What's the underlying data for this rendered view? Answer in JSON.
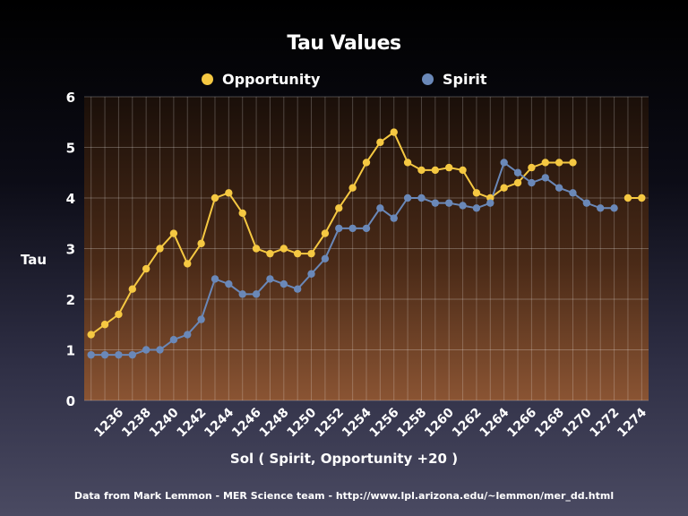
{
  "chart_data": {
    "type": "line",
    "title": "Tau Values",
    "xlabel": "Sol ( Spirit, Opportunity +20 )",
    "ylabel": "Tau",
    "ylim": [
      0,
      6
    ],
    "yticks": [
      "0",
      "1",
      "2",
      "3",
      "4",
      "5",
      "6"
    ],
    "xticks": [
      "1236",
      "1238",
      "1240",
      "1242",
      "1244",
      "1246",
      "1248",
      "1250",
      "1252",
      "1254",
      "1256",
      "1258",
      "1260",
      "1262",
      "1264",
      "1266",
      "1268",
      "1270",
      "1272",
      "1274"
    ],
    "x": [
      1234,
      1235,
      1236,
      1237,
      1238,
      1239,
      1240,
      1241,
      1242,
      1243,
      1244,
      1245,
      1246,
      1247,
      1248,
      1249,
      1250,
      1251,
      1252,
      1253,
      1254,
      1255,
      1256,
      1257,
      1258,
      1259,
      1260,
      1261,
      1262,
      1263,
      1264,
      1265,
      1266,
      1267,
      1268,
      1269,
      1270,
      1271,
      1272,
      1273,
      1274
    ],
    "grid": true,
    "legend_position": "top",
    "series": [
      {
        "name": "Opportunity",
        "color": "#f5c842",
        "values": [
          1.3,
          1.5,
          1.7,
          2.2,
          2.6,
          3.0,
          3.3,
          2.7,
          3.1,
          4.0,
          4.1,
          3.7,
          3.0,
          2.9,
          3.0,
          2.9,
          2.9,
          3.3,
          3.8,
          4.2,
          4.7,
          5.1,
          5.3,
          4.7,
          4.55,
          4.55,
          4.6,
          4.55,
          4.1,
          4.0,
          4.2,
          4.3,
          4.6,
          4.7,
          4.7,
          4.7,
          null,
          null,
          null,
          4.0,
          4.0
        ]
      },
      {
        "name": "Spirit",
        "color": "#6a88b8",
        "values": [
          0.9,
          0.9,
          0.9,
          0.9,
          1.0,
          1.0,
          1.2,
          1.3,
          1.6,
          2.4,
          2.3,
          2.1,
          2.1,
          2.4,
          2.3,
          2.2,
          2.5,
          2.8,
          3.4,
          3.4,
          3.4,
          3.8,
          3.6,
          4.0,
          4.0,
          3.9,
          3.9,
          3.85,
          3.8,
          3.9,
          4.7,
          4.5,
          4.3,
          4.4,
          4.2,
          4.1,
          3.9,
          3.8,
          3.8,
          null,
          null
        ]
      }
    ]
  },
  "source_text": "Data from Mark Lemmon - MER Science team - http://www.lpl.arizona.edu/~lemmon/mer_dd.html"
}
